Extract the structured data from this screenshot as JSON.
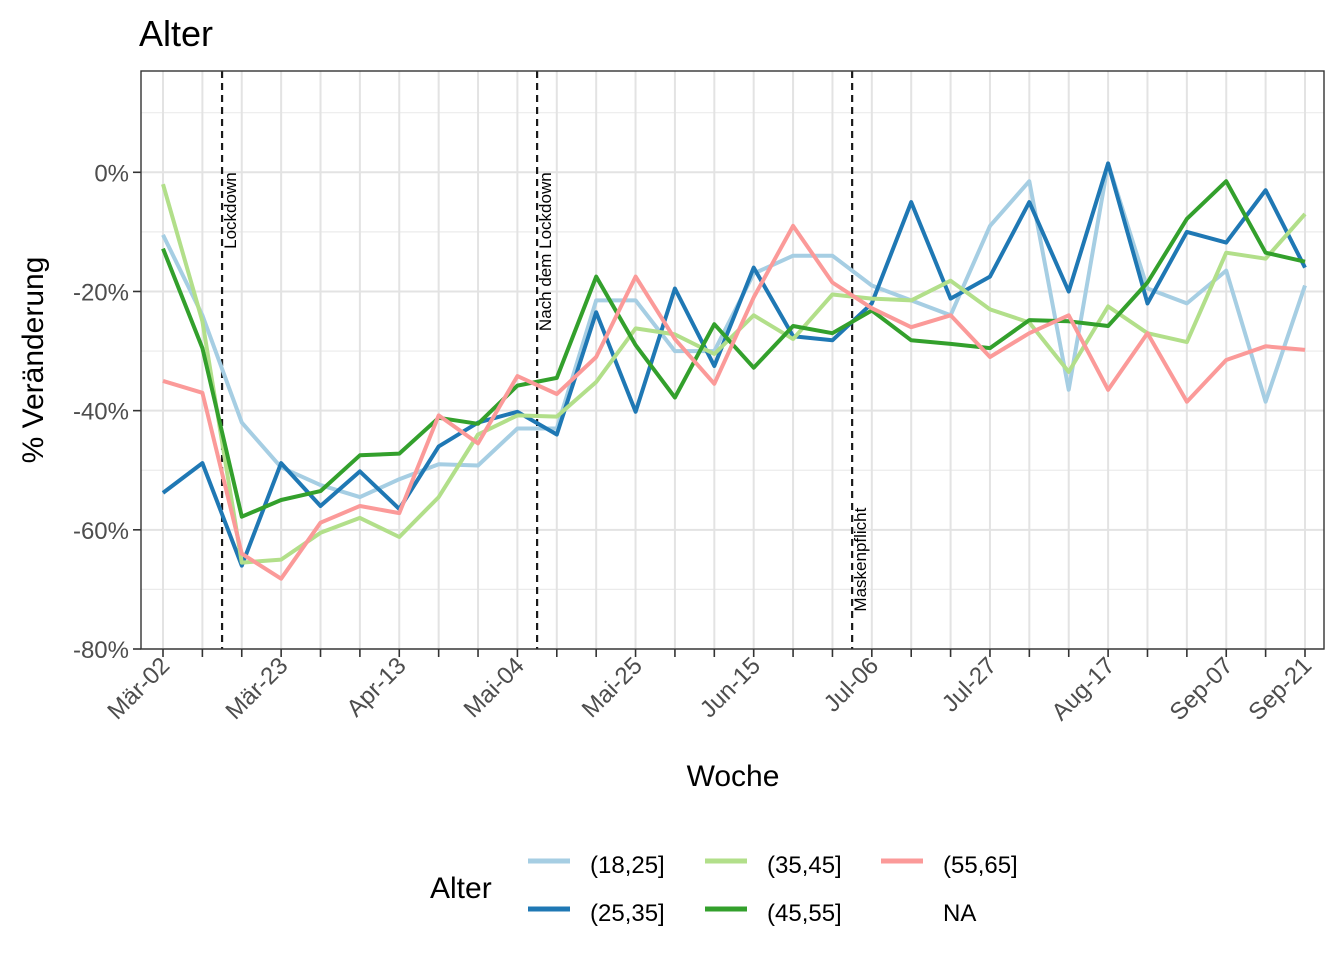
{
  "chart_data": {
    "type": "line",
    "title": "Alter",
    "xlabel": "Woche",
    "ylabel": "% Veränderung",
    "x": [
      "Mär-02",
      "Mär-09",
      "Mär-16",
      "Mär-23",
      "Mär-30",
      "Apr-06",
      "Apr-13",
      "Apr-20",
      "Apr-27",
      "Mai-04",
      "Mai-11",
      "Mai-18",
      "Mai-25",
      "Jun-01",
      "Jun-08",
      "Jun-15",
      "Jun-22",
      "Jun-29",
      "Jul-06",
      "Jul-13",
      "Jul-20",
      "Jul-27",
      "Aug-03",
      "Aug-10",
      "Aug-17",
      "Aug-24",
      "Aug-31",
      "Sep-07",
      "Sep-14",
      "Sep-21"
    ],
    "x_ticks": [
      {
        "index": 0,
        "label": "Mär-02"
      },
      {
        "index": 3,
        "label": "Mär-23"
      },
      {
        "index": 6,
        "label": "Apr-13"
      },
      {
        "index": 9,
        "label": "Mai-04"
      },
      {
        "index": 12,
        "label": "Mai-25"
      },
      {
        "index": 15,
        "label": "Jun-15"
      },
      {
        "index": 18,
        "label": "Jul-06"
      },
      {
        "index": 21,
        "label": "Jul-27"
      },
      {
        "index": 24,
        "label": "Aug-17"
      },
      {
        "index": 27,
        "label": "Sep-07"
      },
      {
        "index": 29,
        "label": "Sep-21"
      }
    ],
    "y_ticks": [
      0,
      -20,
      -40,
      -60,
      -80
    ],
    "y_tick_labels": [
      "0%",
      "-20%",
      "-40%",
      "-60%",
      "-80%"
    ],
    "ylim": [
      -80,
      17
    ],
    "grid": true,
    "vlines": [
      {
        "x": 1.5,
        "label": "Lockdown"
      },
      {
        "x": 9.5,
        "label": "Nach dem Lockdown"
      },
      {
        "x": 17.5,
        "label": "Maskenpflicht"
      }
    ],
    "legend": {
      "title": "Alter",
      "position": "bottom",
      "entries": [
        "(18,25]",
        "(25,35]",
        "(35,45]",
        "(45,55]",
        "(55,65]",
        "NA"
      ]
    },
    "series": [
      {
        "name": "(18,25]",
        "color": "#a6cee3",
        "values": [
          -10.5,
          -24,
          -42,
          -49.5,
          -52.5,
          -54.5,
          -51.5,
          -49,
          -49.2,
          -43,
          -43,
          -21.5,
          -21.5,
          -30,
          -30,
          -17,
          -14,
          -14,
          -19,
          -21.5,
          -24,
          -9,
          -1.5,
          -36.5,
          1.5,
          -19.5,
          -22,
          -16.5,
          -38.5,
          -19
        ]
      },
      {
        "name": "(25,35]",
        "color": "#1f78b4",
        "values": [
          -53.8,
          -48.8,
          -66,
          -48.8,
          -56,
          -50.2,
          -56.5,
          -46,
          -42,
          -40.2,
          -44,
          -23.5,
          -40.2,
          -19.5,
          -32.5,
          -16,
          -27.5,
          -28.2,
          -22,
          -5,
          -21.2,
          -17.5,
          -5,
          -20,
          1.5,
          -22,
          -10,
          -11.8,
          -3,
          -16
        ]
      },
      {
        "name": "(35,45]",
        "color": "#b2df8a",
        "values": [
          -2,
          -25,
          -65.5,
          -65,
          -60.5,
          -58,
          -61.2,
          -54.5,
          -44,
          -40.8,
          -41,
          -35.2,
          -26.2,
          -27.2,
          -30.5,
          -24,
          -28,
          -20.5,
          -21.2,
          -21.5,
          -18.2,
          -23,
          -25.2,
          -33.5,
          -22.5,
          -27,
          -28.5,
          -13.5,
          -14.5,
          -7
        ]
      },
      {
        "name": "(45,55]",
        "color": "#33a02c",
        "values": [
          -12.8,
          -29.5,
          -57.8,
          -55,
          -53.5,
          -47.5,
          -47.2,
          -41.2,
          -42.2,
          -35.8,
          -34.5,
          -17.5,
          -29,
          -37.8,
          -25.5,
          -32.8,
          -25.8,
          -27,
          -23.2,
          -28.2,
          -28.8,
          -29.5,
          -24.8,
          -25,
          -25.8,
          -18.5,
          -7.8,
          -1.5,
          -13.5,
          -15
        ]
      },
      {
        "name": "(55,65]",
        "color": "#fb9a99",
        "values": [
          -35,
          -37,
          -64,
          -68.2,
          -58.8,
          -56,
          -57.2,
          -40.8,
          -45.5,
          -34.2,
          -37.2,
          -31,
          -17.5,
          -28,
          -35.5,
          -21,
          -9,
          -18.5,
          -22.8,
          -26,
          -24,
          -31,
          -27,
          -24,
          -36.5,
          -27,
          -38.5,
          -31.5,
          -29.2,
          -29.8
        ]
      }
    ]
  }
}
